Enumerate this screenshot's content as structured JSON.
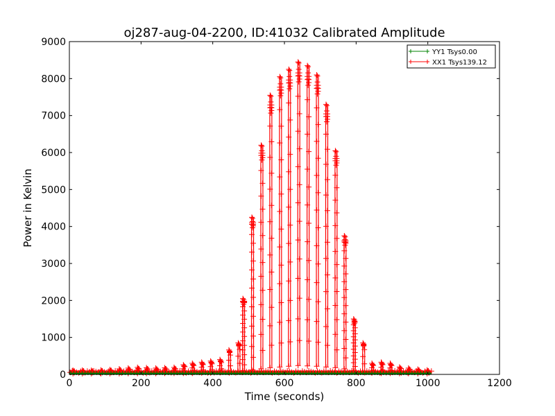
{
  "chart_data": {
    "type": "line",
    "title": "oj287-aug-04-2200, ID:41032 Calibrated Amplitude",
    "xlabel": "Time (seconds)",
    "ylabel": "Power in Kelvin",
    "xlim": [
      0,
      1200
    ],
    "ylim": [
      0,
      9000
    ],
    "xticks": [
      0,
      200,
      400,
      600,
      800,
      1000,
      1200
    ],
    "yticks": [
      0,
      1000,
      2000,
      3000,
      4000,
      5000,
      6000,
      7000,
      8000,
      9000
    ],
    "grid": false,
    "legend_position": "top-right",
    "series": [
      {
        "name": "YY1 Tsys0.00",
        "color": "#008000",
        "marker": "+",
        "x": [
          0,
          100,
          200,
          300,
          400,
          500,
          600,
          700,
          800,
          900,
          1000,
          1010
        ],
        "y": [
          0,
          0,
          0,
          0,
          0,
          0,
          0,
          0,
          0,
          0,
          0,
          0
        ]
      },
      {
        "name": "XX1 Tsys139.12",
        "color": "#ff0000",
        "marker": "+",
        "spike_x": [
          12,
          38,
          63,
          90,
          115,
          141,
          166,
          192,
          217,
          243,
          268,
          294,
          320,
          345,
          371,
          396,
          422,
          447,
          473,
          486,
          511,
          537,
          562,
          589,
          614,
          640,
          666,
          692,
          718,
          744,
          769,
          795,
          821,
          846,
          872,
          897,
          923,
          948,
          974,
          1000
        ],
        "spike_peak": [
          110,
          115,
          110,
          120,
          130,
          150,
          170,
          190,
          180,
          170,
          180,
          190,
          260,
          300,
          330,
          360,
          400,
          660,
          850,
          2050,
          4250,
          6200,
          7550,
          8050,
          8250,
          8450,
          8350,
          8100,
          7300,
          6050,
          3750,
          1500,
          850,
          300,
          330,
          300,
          200,
          170,
          140,
          120
        ],
        "spike_base": [
          20,
          20,
          20,
          20,
          20,
          20,
          25,
          25,
          25,
          25,
          30,
          30,
          30,
          30,
          40,
          40,
          50,
          60,
          80,
          100,
          120,
          150,
          180,
          200,
          220,
          240,
          230,
          220,
          200,
          180,
          150,
          100,
          60,
          40,
          30,
          30,
          25,
          25,
          20,
          20
        ],
        "x_end": 1010
      }
    ]
  }
}
